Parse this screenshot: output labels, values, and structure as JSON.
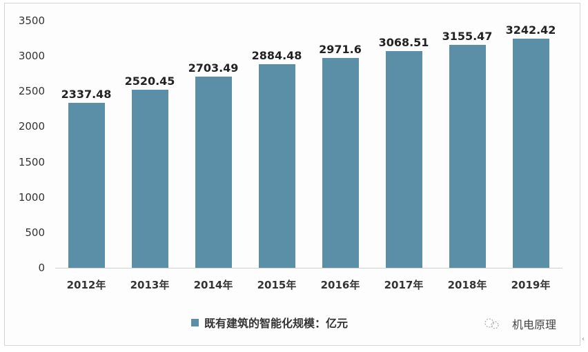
{
  "chart_data": {
    "type": "bar",
    "title": "",
    "xlabel": "",
    "ylabel": "",
    "categories": [
      "2012年",
      "2013年",
      "2014年",
      "2015年",
      "2016年",
      "2017年",
      "2018年",
      "2019年"
    ],
    "series": [
      {
        "name": "既有建筑的智能化规模：亿元",
        "values": [
          2337.48,
          2520.45,
          2703.49,
          2884.48,
          2971.6,
          3068.51,
          3155.47,
          3242.42
        ],
        "labels": [
          "2337.48",
          "2520.45",
          "2703.49",
          "2884.48",
          "2971.6",
          "3068.51",
          "3155.47",
          "3242.42"
        ]
      }
    ],
    "ylim": [
      0,
      3500
    ],
    "yticks": [
      "0",
      "500",
      "1000",
      "1500",
      "2000",
      "2500",
      "3000",
      "3500"
    ],
    "grid": false,
    "legend_position": "bottom",
    "colors": {
      "bar": "#5b8fa8",
      "legend_swatch": "#5b8fa8"
    }
  },
  "watermark": {
    "text": "机电原理"
  },
  "edge_mark": "‹"
}
